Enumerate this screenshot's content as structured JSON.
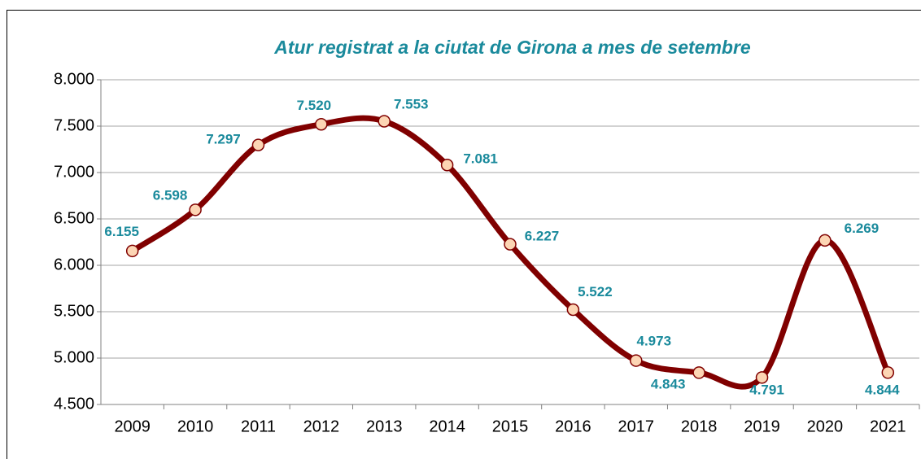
{
  "chart_data": {
    "type": "line",
    "title": "Atur registrat a la ciutat de Girona a mes de setembre",
    "categories": [
      "2009",
      "2010",
      "2011",
      "2012",
      "2013",
      "2014",
      "2015",
      "2016",
      "2017",
      "2018",
      "2019",
      "2020",
      "2021"
    ],
    "series": [
      {
        "color": "#800000",
        "values": [
          6155,
          6598,
          7297,
          7520,
          7553,
          7081,
          6227,
          5522,
          4973,
          4843,
          4791,
          6269,
          4844
        ],
        "value_labels": [
          "6.155",
          "6.598",
          "7.297",
          "7.520",
          "7.553",
          "7.081",
          "6.227",
          "5.522",
          "4.973",
          "4.843",
          "4.791",
          "6.269",
          "4.844"
        ]
      }
    ],
    "ylim": [
      4500,
      8000
    ],
    "yticks": [
      {
        "value": 4500,
        "label": "4.500"
      },
      {
        "value": 5000,
        "label": "5.000"
      },
      {
        "value": 5500,
        "label": "5.500"
      },
      {
        "value": 6000,
        "label": "6.000"
      },
      {
        "value": 6500,
        "label": "6.500"
      },
      {
        "value": 7000,
        "label": "7.000"
      },
      {
        "value": 7500,
        "label": "7.500"
      },
      {
        "value": 8000,
        "label": "8.000"
      }
    ],
    "grid": true
  }
}
